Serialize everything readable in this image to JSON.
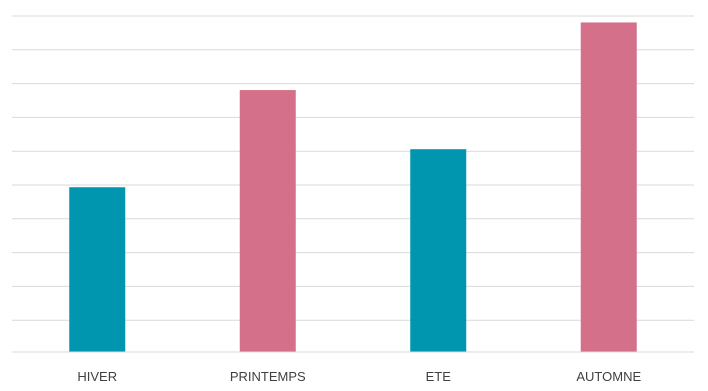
{
  "chart_data": {
    "type": "bar",
    "title": "",
    "xlabel": "",
    "ylabel": "",
    "categories": [
      "HIVER",
      "PRINTEMPS",
      "ETE",
      "AUTOMNE"
    ],
    "values": [
      3.9,
      6.2,
      4.8,
      7.8
    ],
    "colors": [
      "#0096b0",
      "#d4708a",
      "#0096b0",
      "#d4708a"
    ],
    "ylim": [
      0,
      8
    ],
    "grid": true,
    "legend": "none"
  }
}
